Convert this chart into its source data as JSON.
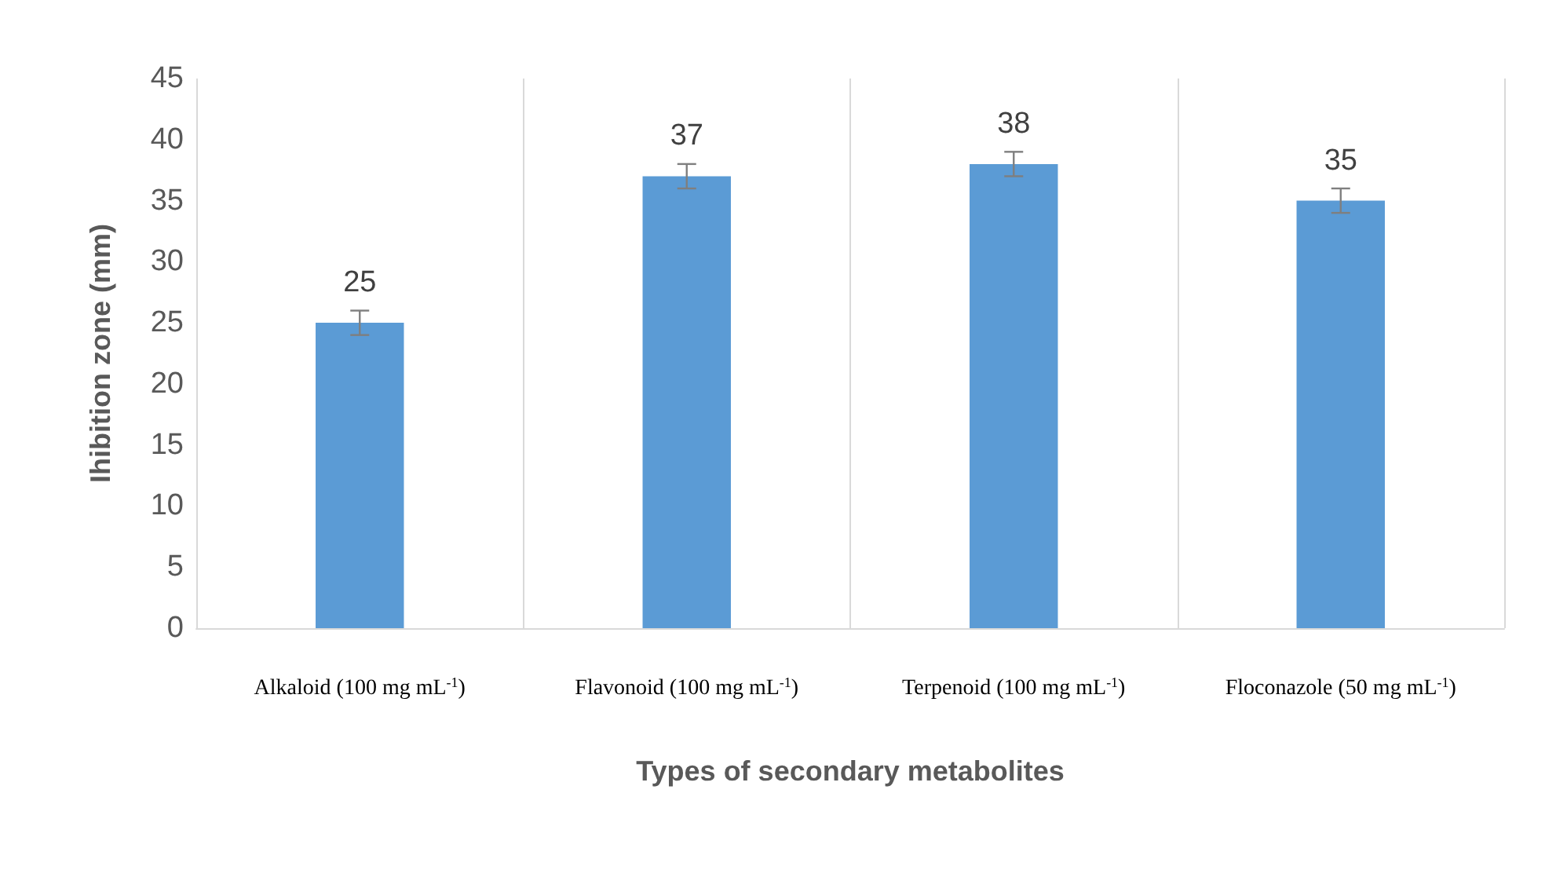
{
  "chart_data": {
    "type": "bar",
    "categories": [
      "Alkaloid (100 mg mL$^{-1}$)",
      "Flavonoid (100 mg mL$^{-1}$)",
      "Terpenoid (100 mg mL$^{-1}$)",
      "Floconazole (50 mg mL$^{-1}$)"
    ],
    "values": [
      25,
      37,
      38,
      35
    ],
    "errors": [
      1,
      1,
      1,
      1
    ],
    "color": "#5b9bd5",
    "xlabel": "Types of secondary metabolites",
    "ylabel": "Ihibition zone (mm)",
    "ylim": [
      0,
      45
    ],
    "yticks": [
      0,
      5,
      10,
      15,
      20,
      25,
      30,
      35,
      40,
      45
    ],
    "grid": "x",
    "data_labels": true
  }
}
